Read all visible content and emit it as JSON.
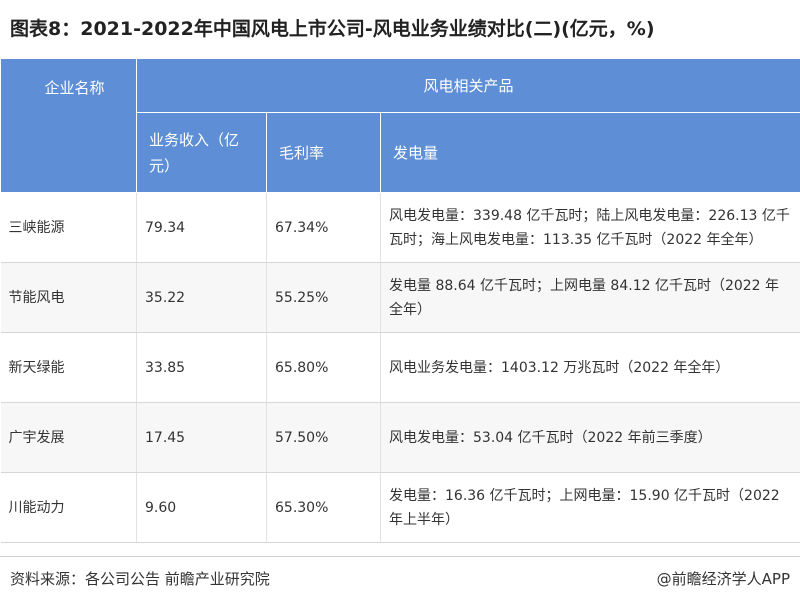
{
  "title": "图表8：2021-2022年中国风电上市公司-风电业务业绩对比(二)(亿元，%)",
  "table": {
    "header_company": "企业名称",
    "header_group": "风电相关产品",
    "header_revenue": "业务收入（亿元）",
    "header_margin": "毛利率",
    "header_power": "发电量",
    "rows": [
      {
        "company": "三峡能源",
        "revenue": "79.34",
        "margin": "67.34%",
        "power": "风电发电量：339.48 亿千瓦时；陆上风电发电量：226.13 亿千瓦时；海上风电发电量：113.35 亿千瓦时（2022 年全年）"
      },
      {
        "company": "节能风电",
        "revenue": "35.22",
        "margin": "55.25%",
        "power": "发电量 88.64 亿千瓦时；上网电量 84.12 亿千瓦时（2022 年全年）"
      },
      {
        "company": "新天绿能",
        "revenue": "33.85",
        "margin": "65.80%",
        "power": "风电业务发电量：1403.12 万兆瓦时（2022 年全年）"
      },
      {
        "company": "广宇发展",
        "revenue": "17.45",
        "margin": "57.50%",
        "power": "风电发电量：53.04 亿千瓦时（2022 年前三季度）"
      },
      {
        "company": "川能动力",
        "revenue": "9.60",
        "margin": "65.30%",
        "power": "发电量：16.36 亿千瓦时；上网电量：15.90 亿千瓦时（2022 年上半年）"
      }
    ]
  },
  "footer": {
    "source": "资料来源：各公司公告 前瞻产业研究院",
    "brand": "@前瞻经济学人APP"
  }
}
